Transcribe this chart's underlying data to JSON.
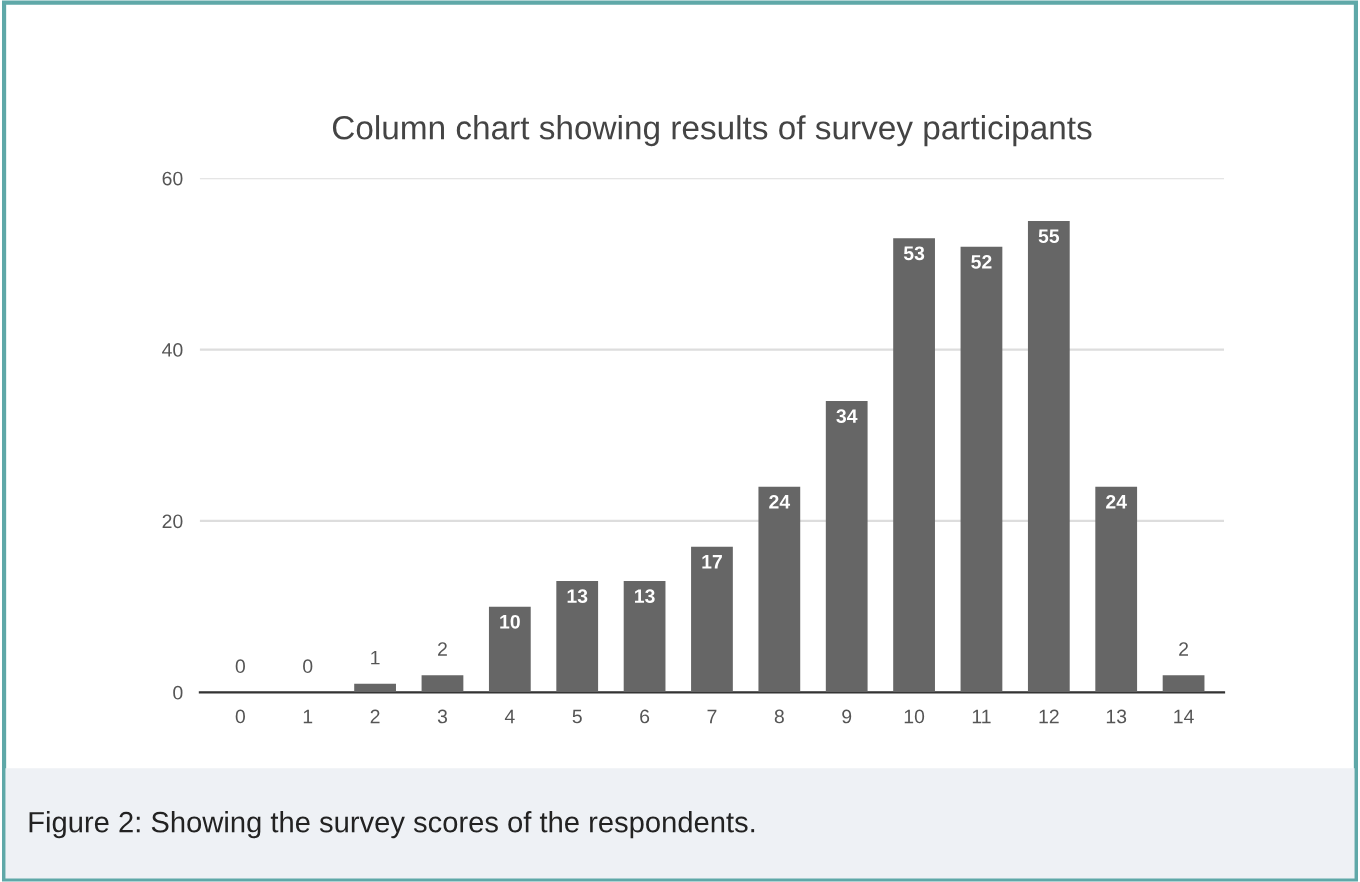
{
  "chart_data": {
    "type": "bar",
    "title": "Column chart showing results of survey participants",
    "categories": [
      "0",
      "1",
      "2",
      "3",
      "4",
      "5",
      "6",
      "7",
      "8",
      "9",
      "10",
      "11",
      "12",
      "13",
      "14"
    ],
    "values": [
      0,
      0,
      1,
      2,
      10,
      13,
      13,
      17,
      24,
      34,
      53,
      52,
      55,
      24,
      2
    ],
    "color": "#666666",
    "ylim": [
      0,
      60
    ],
    "yticks": [
      0,
      20,
      40,
      60
    ],
    "grid": "y",
    "data_labels": true,
    "annotations": [
      "Figure 2: Showing the survey scores of the respondents."
    ]
  }
}
